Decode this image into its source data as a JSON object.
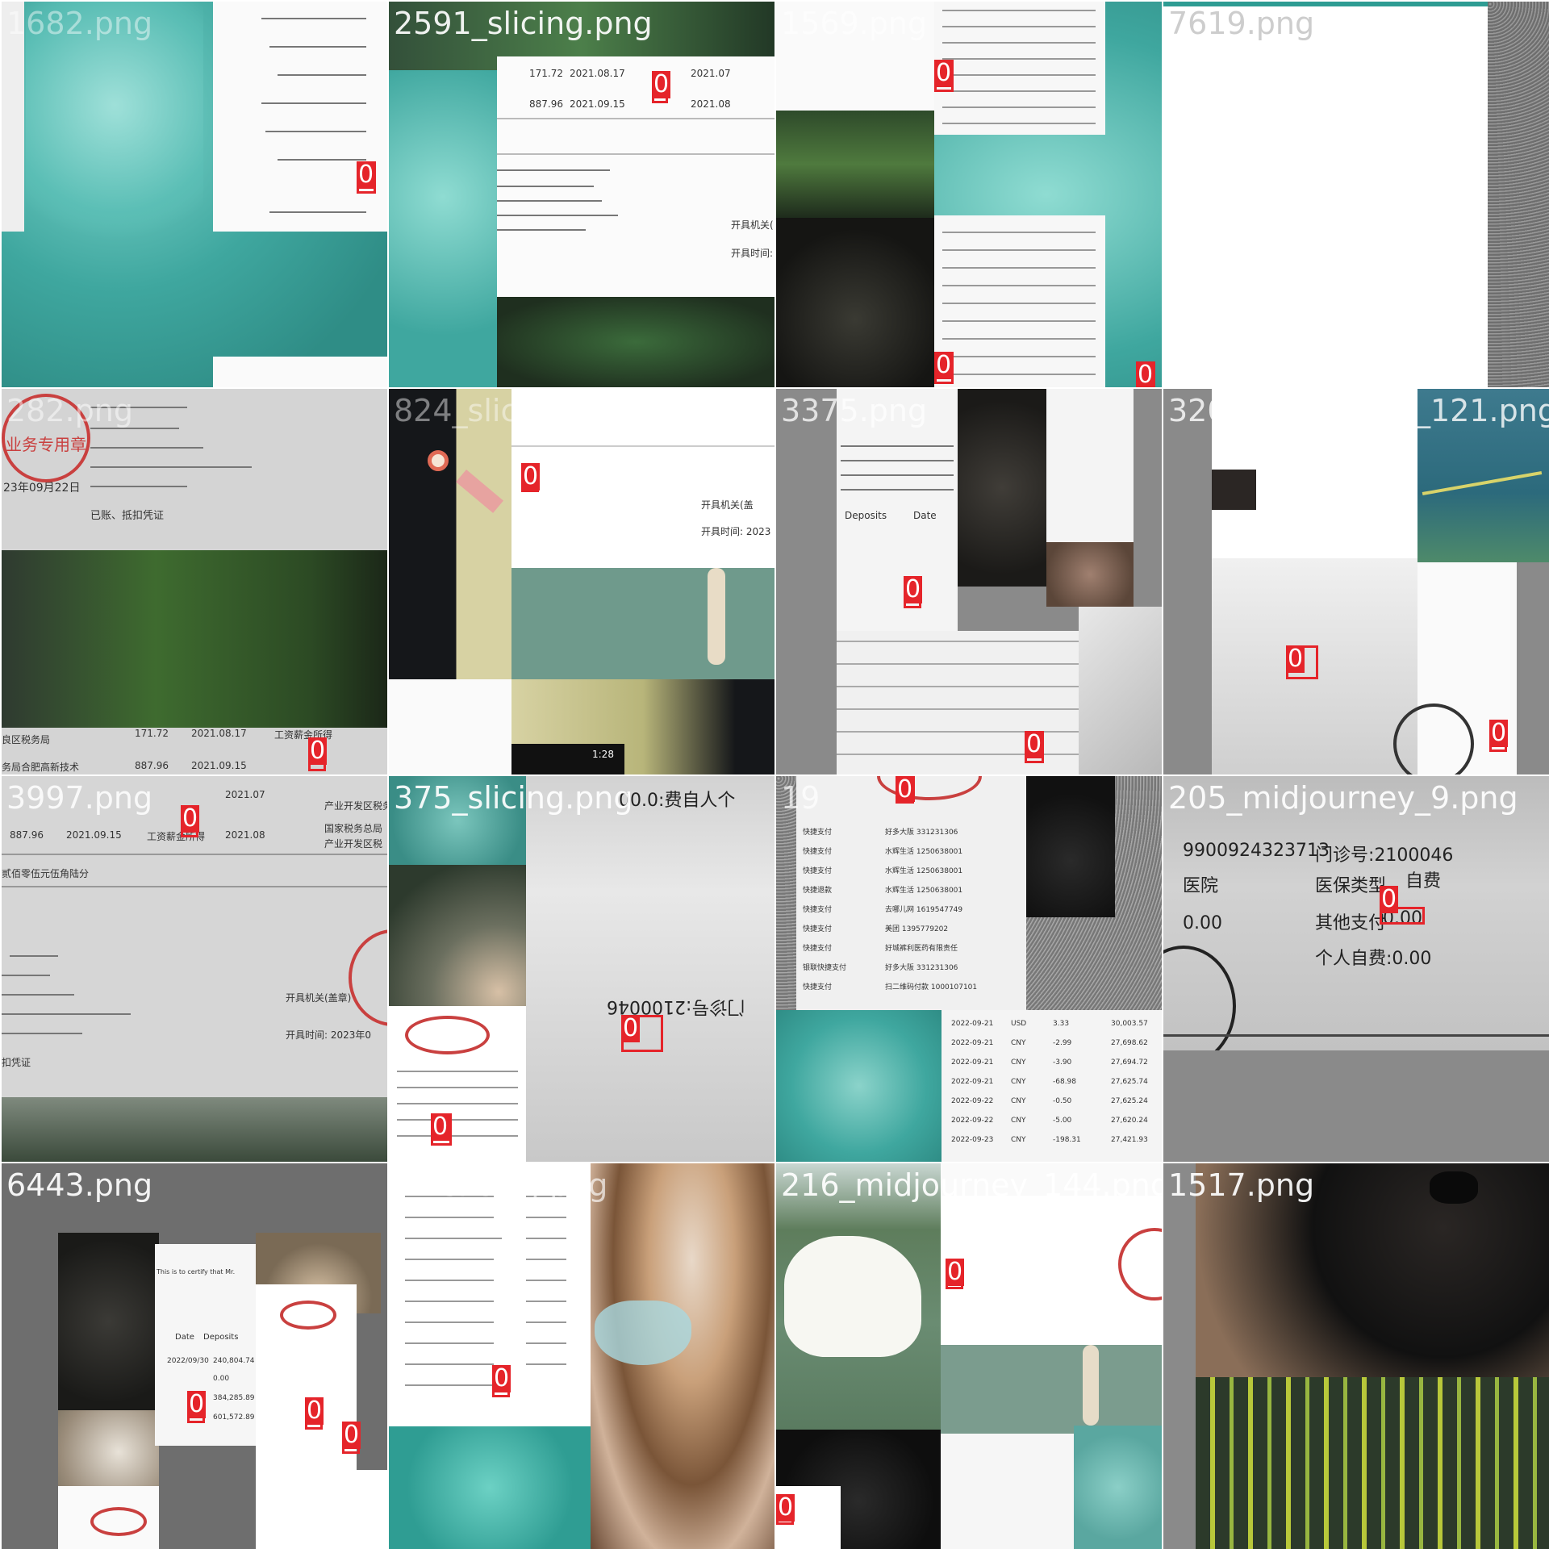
{
  "tiles": [
    {
      "label": "1682.png"
    },
    {
      "label": "2591_slicing.png"
    },
    {
      "label": "1569.png"
    },
    {
      "label": "7619.png"
    },
    {
      "label": "282.png"
    },
    {
      "label": "824_slicing.png"
    },
    {
      "label": "3375.png"
    },
    {
      "label": "320_midjourney_121.png"
    },
    {
      "label": "3997.png"
    },
    {
      "label": "375_slicing.png"
    },
    {
      "label": "19"
    },
    {
      "label": "205_midjourney_9.png"
    },
    {
      "label": "6443.png"
    },
    {
      "label": "27 slicing.png"
    },
    {
      "label": "216_midjourney_144.png"
    },
    {
      "label": "1517.png"
    }
  ],
  "box_label": "0",
  "snippets": {
    "t2_amount1": "171.72",
    "t2_date1": "2021.08.17",
    "t2_amount2": "887.96",
    "t2_date2": "2021.09.15",
    "t2_month1": "2021.07",
    "t2_month2": "2021.08",
    "t2_issuer": "开具机关(",
    "t2_time": "开具时间:",
    "t5_stamp": "业务专用章",
    "t5_date": "23年09月22日",
    "t5_voucher": "已账、抵扣凭证",
    "t5_amount1": "171.72",
    "t5_date1": "2021.08.17",
    "t5_amount2": "887.96",
    "t5_date2": "2021.09.15",
    "t5_wage1": "工资薪金所得",
    "t5_bureau1": "良区税务局",
    "t5_bureau2": "务局合肥高新技术",
    "t9_amount": "887.96",
    "t9_date": "2021.09.15",
    "t9_month1": "2021.07",
    "t9_month2": "2021.08",
    "t9_wage": "工资薪金所得",
    "t9_tax1": "产业开发区税务",
    "t9_tax2": "国家税务总局",
    "t9_tax3": "产业开发区税",
    "t9_sum": "贰佰零伍元伍角陆分",
    "t9_issuer": "开具机关(盖章)",
    "t9_time": "开具时间: 2023年0",
    "t9_voucher": "扣凭证",
    "t10_text1": "00.0:费自人个",
    "t10_text2": "门诊号:2100046",
    "t12_clinic": "门诊号:2100046",
    "t12_type": "医保类型",
    "t12_self": "自费",
    "t12_other": "其他支付",
    "t12_other_val": "0.00",
    "t12_personal": "个人自费:0.00",
    "t12_hosp": "医院",
    "t12_id": "9900924323713",
    "t12_zero": "0.00",
    "t7_date": "Date",
    "t7_deposits": "Deposits",
    "t7_cert": "This is to certify that Mr.",
    "t13_date": "Date",
    "t13_deposits": "Deposits",
    "t13_v1": "240,804.74",
    "t13_v2": "0.00",
    "t13_v3": "384,285.89",
    "t13_v4": "601,572.89",
    "t13_d1": "2022/09/30",
    "t11_rows": [
      "快捷支付",
      "快捷支付",
      "快捷支付",
      "快捷退款",
      "快捷支付",
      "快捷支付",
      "快捷支付",
      "银联快捷支付",
      "快捷支付"
    ],
    "t11_vendors": [
      "好多大阪 331231306",
      "水辉生活 1250638001",
      "水辉生活 1250638001",
      "水辉生活 1250638001",
      "去哪儿网 1619547749",
      "美团 1395779202",
      "好城裤利医药有限责任",
      "好多大阪 331231306",
      "扫二维码付款 1000107101"
    ],
    "t11_ledger_dates": [
      "2022-09-21",
      "2022-09-21",
      "2022-09-21",
      "2022-09-21",
      "2022-09-22",
      "2022-09-22",
      "2022-09-23"
    ],
    "t11_ledger_cur": [
      "USD",
      "CNY",
      "CNY",
      "CNY",
      "CNY",
      "CNY",
      "CNY"
    ],
    "t11_ledger_amt": [
      "3.33",
      "-2.99",
      "-3.90",
      "-68.98",
      "-0.50",
      "-5.00",
      "-198.31"
    ],
    "t11_ledger_bal": [
      "30,003.57",
      "27,698.62",
      "27,694.72",
      "27,625.74",
      "27,625.24",
      "27,620.24",
      "27,421.93"
    ],
    "t6_time": "开具时间: 2023",
    "t6_issuer": "开具机关(盖",
    "t6_clock": "1:28"
  },
  "colors": {
    "teal": "#3fa79f",
    "box": "#e5242a",
    "gray_bg": "#8a8a8a"
  }
}
